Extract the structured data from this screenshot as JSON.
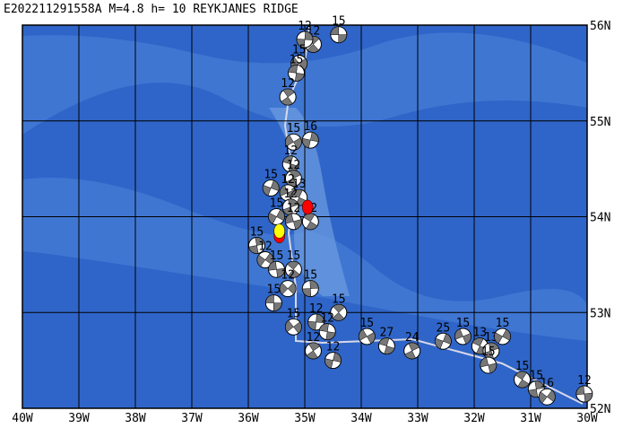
{
  "title": "E202211291558A M=4.8 h= 10 REYKJANES RIDGE",
  "map": {
    "xlim": [
      -40,
      -30
    ],
    "ylim": [
      52,
      56
    ],
    "xticks": [
      {
        "value": -40,
        "label": "40W"
      },
      {
        "value": -39,
        "label": "39W"
      },
      {
        "value": -38,
        "label": "38W"
      },
      {
        "value": -37,
        "label": "37W"
      },
      {
        "value": -36,
        "label": "36W"
      },
      {
        "value": -35,
        "label": "35W"
      },
      {
        "value": -34,
        "label": "34W"
      },
      {
        "value": -33,
        "label": "33W"
      },
      {
        "value": -32,
        "label": "32W"
      },
      {
        "value": -31,
        "label": "31W"
      },
      {
        "value": -30,
        "label": "30W"
      }
    ],
    "yticks": [
      {
        "value": 56,
        "label": "56N"
      },
      {
        "value": 55,
        "label": "55N"
      },
      {
        "value": 54,
        "label": "54N"
      },
      {
        "value": 53,
        "label": "53N"
      },
      {
        "value": 52,
        "label": "52N"
      }
    ],
    "events": [
      {
        "lon": -34.4,
        "lat": 55.9,
        "depth": 15
      },
      {
        "lon": -34.85,
        "lat": 55.8,
        "depth": 12
      },
      {
        "lon": -35.0,
        "lat": 55.85,
        "depth": 12
      },
      {
        "lon": -35.1,
        "lat": 55.6,
        "depth": 15
      },
      {
        "lon": -35.15,
        "lat": 55.5,
        "depth": 15
      },
      {
        "lon": -35.3,
        "lat": 55.25,
        "depth": 12
      },
      {
        "lon": -34.9,
        "lat": 54.8,
        "depth": 16
      },
      {
        "lon": -35.2,
        "lat": 54.78,
        "depth": 15
      },
      {
        "lon": -35.25,
        "lat": 54.55,
        "depth": 12
      },
      {
        "lon": -35.2,
        "lat": 54.4,
        "depth": 12
      },
      {
        "lon": -35.6,
        "lat": 54.3,
        "depth": 15
      },
      {
        "lon": -35.3,
        "lat": 54.25,
        "depth": 12
      },
      {
        "lon": -35.1,
        "lat": 54.2,
        "depth": 13
      },
      {
        "lon": -35.25,
        "lat": 54.1,
        "depth": 12
      },
      {
        "lon": -35.5,
        "lat": 54.0,
        "depth": 15
      },
      {
        "lon": -35.2,
        "lat": 53.95,
        "depth": 12
      },
      {
        "lon": -34.9,
        "lat": 53.95,
        "depth": 12
      },
      {
        "lon": -35.85,
        "lat": 53.7,
        "depth": 15
      },
      {
        "lon": -35.7,
        "lat": 53.55,
        "depth": 12
      },
      {
        "lon": -35.5,
        "lat": 53.45,
        "depth": 15
      },
      {
        "lon": -35.2,
        "lat": 53.45,
        "depth": 15
      },
      {
        "lon": -34.9,
        "lat": 53.25,
        "depth": 15
      },
      {
        "lon": -35.3,
        "lat": 53.25,
        "depth": 12
      },
      {
        "lon": -35.55,
        "lat": 53.1,
        "depth": 15
      },
      {
        "lon": -34.4,
        "lat": 53.0,
        "depth": 15
      },
      {
        "lon": -34.8,
        "lat": 52.9,
        "depth": 12
      },
      {
        "lon": -35.2,
        "lat": 52.85,
        "depth": 15
      },
      {
        "lon": -34.6,
        "lat": 52.8,
        "depth": 12
      },
      {
        "lon": -34.85,
        "lat": 52.6,
        "depth": 12
      },
      {
        "lon": -34.5,
        "lat": 52.5,
        "depth": 12
      },
      {
        "lon": -33.9,
        "lat": 52.75,
        "depth": 15
      },
      {
        "lon": -33.55,
        "lat": 52.65,
        "depth": 27
      },
      {
        "lon": -33.1,
        "lat": 52.6,
        "depth": 24
      },
      {
        "lon": -32.55,
        "lat": 52.7,
        "depth": 25
      },
      {
        "lon": -32.2,
        "lat": 52.75,
        "depth": 15
      },
      {
        "lon": -31.9,
        "lat": 52.65,
        "depth": 13
      },
      {
        "lon": -31.7,
        "lat": 52.6,
        "depth": 13
      },
      {
        "lon": -31.5,
        "lat": 52.75,
        "depth": 15
      },
      {
        "lon": -31.75,
        "lat": 52.45,
        "depth": 15
      },
      {
        "lon": -31.15,
        "lat": 52.3,
        "depth": 15
      },
      {
        "lon": -30.9,
        "lat": 52.2,
        "depth": 15
      },
      {
        "lon": -30.71,
        "lat": 52.12,
        "depth": 16
      },
      {
        "lon": -30.05,
        "lat": 52.15,
        "depth": 12
      }
    ],
    "highlights": [
      {
        "lon": -35.45,
        "lat": 53.8,
        "color": "#ff0000"
      },
      {
        "lon": -35.45,
        "lat": 53.85,
        "color": "#ffff00"
      },
      {
        "lon": -34.95,
        "lat": 54.1,
        "color": "#ff0000"
      }
    ]
  }
}
